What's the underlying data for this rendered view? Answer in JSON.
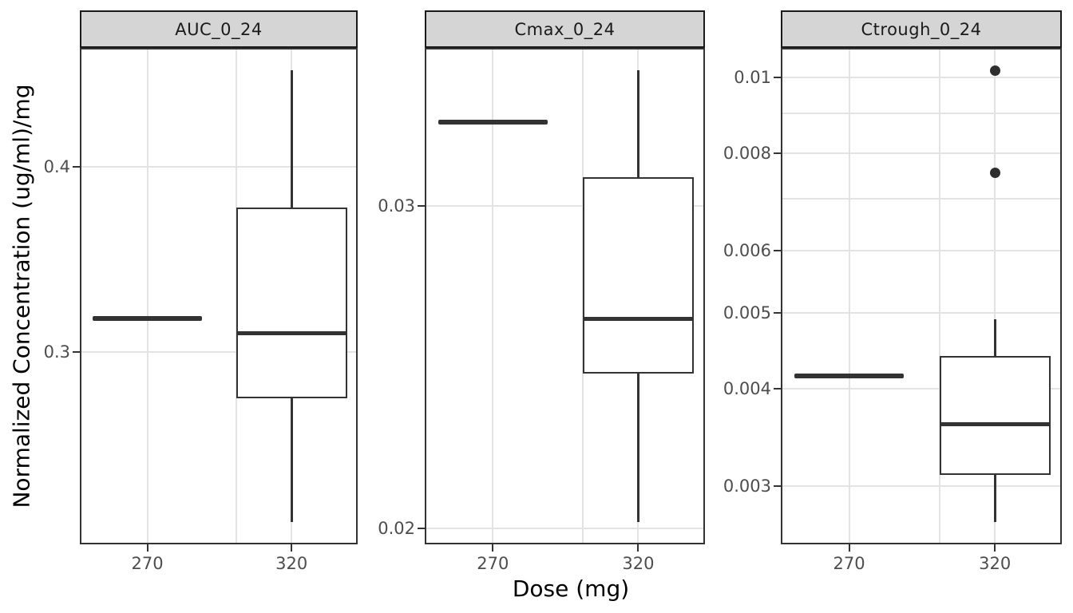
{
  "chart_data": {
    "type": "boxplot",
    "layout_hint": "three faceted panels, shared x categories, free y scales, grid on, no legend",
    "xlabel": "Dose (mg)",
    "ylabel": "Normalized Concentration (ug/ml)/mg",
    "categories": [
      "270",
      "320"
    ],
    "colors": {
      "box_stroke": "#333333",
      "outlier": "#2e2e2e",
      "grid": "#e3e3e3",
      "strip_fill": "#d5d5d5",
      "strip_border": "#1a1a1a",
      "panel_border": "#333333",
      "tick_text": "#4d4d4d",
      "title_text": "#000000",
      "background": "#ffffff"
    },
    "facets": [
      {
        "label": "AUC_0_24",
        "scale": "linear",
        "ylim": [
          0.196,
          0.464
        ],
        "yticks": [
          {
            "v": 0.4,
            "label": "0.4"
          },
          {
            "v": 0.3,
            "label": "0.3"
          }
        ],
        "ygrid": [
          0.4,
          0.3
        ],
        "boxes": [
          {
            "category": "270",
            "type": "flat",
            "value": 0.318
          },
          {
            "category": "320",
            "type": "box",
            "min": 0.208,
            "q1": 0.275,
            "median": 0.31,
            "q3": 0.378,
            "max": 0.452,
            "outliers": []
          }
        ]
      },
      {
        "label": "Cmax_0_24",
        "scale": "linear",
        "ylim": [
          0.0195,
          0.0349
        ],
        "yticks": [
          {
            "v": 0.03,
            "label": "0.03"
          },
          {
            "v": 0.02,
            "label": "0.02"
          }
        ],
        "ygrid": [
          0.03,
          0.02
        ],
        "boxes": [
          {
            "category": "270",
            "type": "flat",
            "value": 0.0326
          },
          {
            "category": "320",
            "type": "box",
            "min": 0.0202,
            "q1": 0.0248,
            "median": 0.0265,
            "q3": 0.0309,
            "max": 0.0342,
            "outliers": []
          }
        ]
      },
      {
        "label": "Ctrough_0_24",
        "scale": "log",
        "ylim": [
          0.00253,
          0.0109
        ],
        "yticks": [
          {
            "v": 0.01,
            "label": "0.01"
          },
          {
            "v": 0.008,
            "label": "0.008"
          },
          {
            "v": 0.006,
            "label": "0.006"
          },
          {
            "v": 0.005,
            "label": "0.005"
          },
          {
            "v": 0.004,
            "label": "0.004"
          },
          {
            "v": 0.003,
            "label": "0.003"
          }
        ],
        "ygrid": [
          0.01,
          0.009,
          0.008,
          0.007,
          0.006,
          0.005,
          0.004,
          0.003
        ],
        "boxes": [
          {
            "category": "270",
            "type": "flat",
            "value": 0.00415
          },
          {
            "category": "320",
            "type": "box",
            "min": 0.0027,
            "q1": 0.0031,
            "median": 0.0036,
            "q3": 0.0044,
            "max": 0.0049,
            "outliers": [
              0.0102,
              0.00755
            ]
          }
        ]
      }
    ]
  }
}
